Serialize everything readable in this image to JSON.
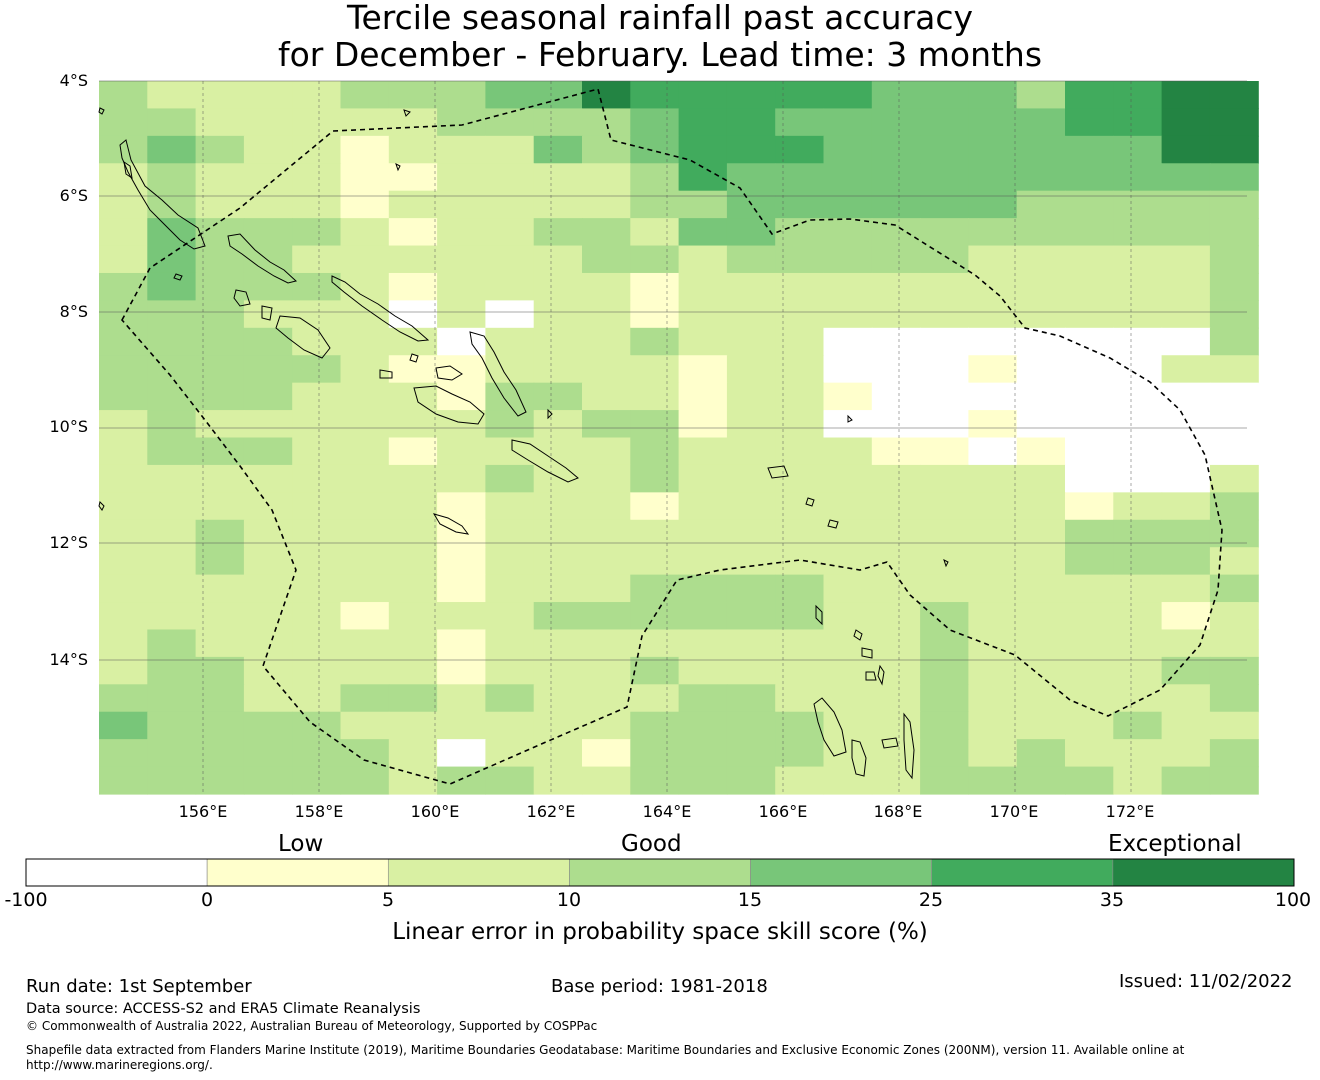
{
  "title": {
    "line1": "Tercile seasonal rainfall past accuracy",
    "line2": "for December - February. Lead time: 3 months"
  },
  "map": {
    "lat_labels": [
      "4°S",
      "6°S",
      "8°S",
      "10°S",
      "12°S",
      "14°S"
    ],
    "lon_labels": [
      "156°E",
      "158°E",
      "160°E",
      "162°E",
      "164°E",
      "166°E",
      "168°E",
      "170°E",
      "172°E"
    ],
    "eez_boundary_style": "black dashed",
    "grid_note": "skill score categories per grid cell"
  },
  "legend": {
    "category_labels": [
      "Low",
      "Good",
      "Exceptional"
    ],
    "bins": [
      {
        "from": -100,
        "to": 0,
        "color": "#ffffff"
      },
      {
        "from": 0,
        "to": 5,
        "color": "#ffffcc"
      },
      {
        "from": 5,
        "to": 10,
        "color": "#d9f0a3"
      },
      {
        "from": 10,
        "to": 15,
        "color": "#addd8e"
      },
      {
        "from": 15,
        "to": 25,
        "color": "#78c679"
      },
      {
        "from": 25,
        "to": 35,
        "color": "#41ab5d"
      },
      {
        "from": 35,
        "to": 100,
        "color": "#238443"
      }
    ],
    "tick_labels": [
      "-100",
      "0",
      "5",
      "10",
      "15",
      "25",
      "35",
      "100"
    ],
    "axis_label": "Linear error in probability space skill score (%)"
  },
  "footer": {
    "run_date": "Run date: 1st September",
    "base_period": "Base period: 1981-2018",
    "issued": "Issued: 11/02/2022",
    "data_source": "Data source: ACCESS-S2 and ERA5 Climate Reanalysis",
    "copyright": "© Commonwealth of Australia 2022, Australian Bureau of Meteorology, Supported by COSPPac",
    "shapefile_line1": "Shapefile data extracted from Flanders Marine Institute (2019), Maritime Boundaries Geodatabase: Maritime Boundaries and Exclusive Economic Zones (200NM), version 11. Available online at",
    "shapefile_line2": "http://www.marineregions.org/."
  }
}
